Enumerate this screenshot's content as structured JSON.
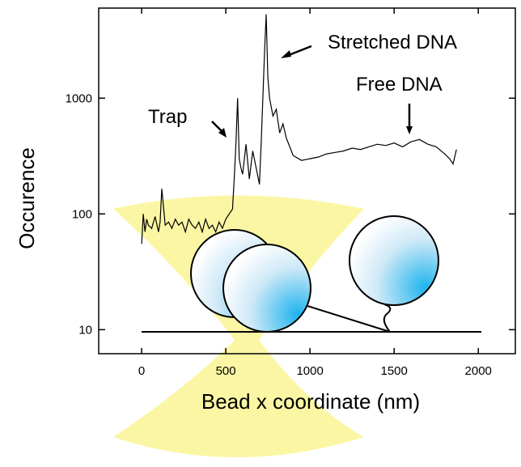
{
  "chart_data": {
    "type": "line",
    "y_scale": "log",
    "x_label": "Bead x coordinate (nm)",
    "y_label": "Occurence",
    "annotations": [
      "Stretched DNA",
      "Free DNA",
      "Trap"
    ],
    "xlim": [
      -255,
      2220
    ],
    "xticks": [
      0,
      500,
      1000,
      1500,
      2000
    ],
    "ylim": [
      6.2,
      6000
    ],
    "yticks": [
      10,
      100,
      1000
    ],
    "color": "#000000",
    "x": [
      0,
      10,
      20,
      30,
      40,
      60,
      80,
      100,
      110,
      120,
      140,
      160,
      180,
      200,
      220,
      240,
      260,
      280,
      300,
      320,
      340,
      360,
      380,
      400,
      420,
      440,
      460,
      480,
      500,
      520,
      540,
      550,
      560,
      570,
      580,
      590,
      600,
      620,
      640,
      660,
      680,
      700,
      710,
      720,
      730,
      740,
      750,
      760,
      780,
      800,
      820,
      840,
      860,
      880,
      900,
      950,
      1000,
      1050,
      1100,
      1150,
      1200,
      1250,
      1300,
      1350,
      1400,
      1450,
      1500,
      1550,
      1600,
      1650,
      1700,
      1750,
      1800,
      1830,
      1850,
      1870
    ],
    "values": [
      55,
      100,
      70,
      90,
      80,
      75,
      95,
      70,
      85,
      165,
      80,
      85,
      75,
      90,
      80,
      85,
      70,
      90,
      80,
      75,
      85,
      70,
      90,
      75,
      80,
      70,
      85,
      75,
      90,
      100,
      110,
      200,
      400,
      1000,
      300,
      250,
      220,
      400,
      200,
      350,
      250,
      180,
      400,
      1000,
      2500,
      5300,
      1500,
      1000,
      700,
      800,
      500,
      600,
      450,
      380,
      320,
      290,
      300,
      310,
      330,
      340,
      350,
      370,
      360,
      380,
      400,
      390,
      410,
      380,
      420,
      440,
      400,
      380,
      330,
      300,
      270,
      360
    ]
  }
}
